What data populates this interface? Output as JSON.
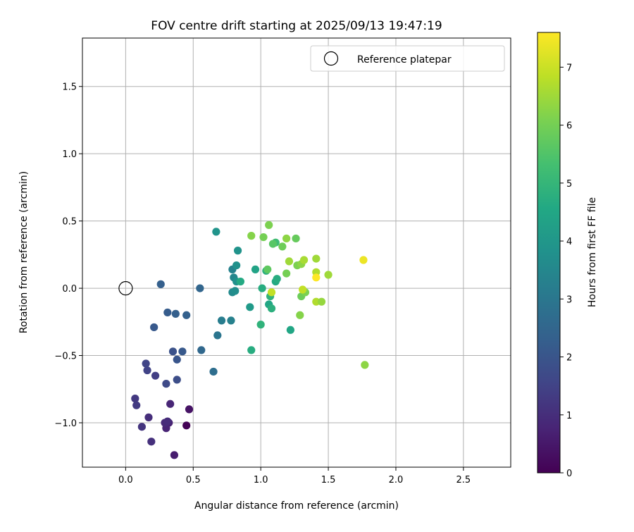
{
  "chart_data": {
    "type": "scatter",
    "title": "FOV centre drift starting at 2025/09/13 19:47:19",
    "xlabel": "Angular distance from reference (arcmin)",
    "ylabel": "Rotation from reference (arcmin)",
    "xlim": [
      -0.32,
      2.85
    ],
    "ylim": [
      -1.33,
      1.86
    ],
    "xticks": [
      0.0,
      0.5,
      1.0,
      1.5,
      2.0,
      2.5
    ],
    "xtick_labels": [
      "0.0",
      "0.5",
      "1.0",
      "1.5",
      "2.0",
      "2.5"
    ],
    "yticks": [
      -1.0,
      -0.5,
      0.0,
      0.5,
      1.0,
      1.5
    ],
    "ytick_labels": [
      "−1.0",
      "−0.5",
      "0.0",
      "0.5",
      "1.0",
      "1.5"
    ],
    "grid": true,
    "legend": {
      "position": "top-right",
      "label": "Reference platepar"
    },
    "reference_point": {
      "x": 0.0,
      "y": 0.0
    },
    "colorbar": {
      "label": "Hours from first FF file",
      "colormap": "viridis",
      "range": [
        0,
        7.6
      ],
      "ticks": [
        0,
        1,
        2,
        3,
        4,
        5,
        6,
        7
      ],
      "tick_labels": [
        "0",
        "1",
        "2",
        "3",
        "4",
        "5",
        "6",
        "7"
      ]
    },
    "points": [
      {
        "x": 0.45,
        "y": -1.02,
        "hours": 0.05
      },
      {
        "x": 0.47,
        "y": -0.9,
        "hours": 0.4
      },
      {
        "x": 0.36,
        "y": -1.24,
        "hours": 0.6
      },
      {
        "x": 0.32,
        "y": -1.0,
        "hours": 0.7
      },
      {
        "x": 0.3,
        "y": -1.04,
        "hours": 0.75
      },
      {
        "x": 0.33,
        "y": -0.86,
        "hours": 0.8
      },
      {
        "x": 0.29,
        "y": -1.0,
        "hours": 0.9
      },
      {
        "x": 0.31,
        "y": -0.99,
        "hours": 0.95
      },
      {
        "x": 0.17,
        "y": -0.96,
        "hours": 1.0
      },
      {
        "x": 0.19,
        "y": -1.14,
        "hours": 1.05
      },
      {
        "x": 0.12,
        "y": -1.03,
        "hours": 1.15
      },
      {
        "x": 0.07,
        "y": -0.82,
        "hours": 1.25
      },
      {
        "x": 0.08,
        "y": -0.87,
        "hours": 1.3
      },
      {
        "x": 0.22,
        "y": -0.65,
        "hours": 1.4
      },
      {
        "x": 0.16,
        "y": -0.61,
        "hours": 1.5
      },
      {
        "x": 0.15,
        "y": -0.56,
        "hours": 1.55
      },
      {
        "x": 0.3,
        "y": -0.71,
        "hours": 1.7
      },
      {
        "x": 0.38,
        "y": -0.68,
        "hours": 1.8
      },
      {
        "x": 0.35,
        "y": -0.47,
        "hours": 1.9
      },
      {
        "x": 0.38,
        "y": -0.53,
        "hours": 2.0
      },
      {
        "x": 0.42,
        "y": -0.47,
        "hours": 2.1
      },
      {
        "x": 0.21,
        "y": -0.29,
        "hours": 2.1
      },
      {
        "x": 0.31,
        "y": -0.18,
        "hours": 2.2
      },
      {
        "x": 0.37,
        "y": -0.19,
        "hours": 2.3
      },
      {
        "x": 0.45,
        "y": -0.2,
        "hours": 2.35
      },
      {
        "x": 0.26,
        "y": 0.03,
        "hours": 2.3
      },
      {
        "x": 0.55,
        "y": 0.0,
        "hours": 2.5
      },
      {
        "x": 0.56,
        "y": -0.46,
        "hours": 2.55
      },
      {
        "x": 0.65,
        "y": -0.62,
        "hours": 2.75
      },
      {
        "x": 0.68,
        "y": -0.35,
        "hours": 2.95
      },
      {
        "x": 0.71,
        "y": -0.24,
        "hours": 3.2
      },
      {
        "x": 0.78,
        "y": -0.24,
        "hours": 3.3
      },
      {
        "x": 0.79,
        "y": 0.14,
        "hours": 3.35
      },
      {
        "x": 0.8,
        "y": 0.08,
        "hours": 3.5
      },
      {
        "x": 0.79,
        "y": -0.03,
        "hours": 3.6
      },
      {
        "x": 0.81,
        "y": -0.02,
        "hours": 3.7
      },
      {
        "x": 0.82,
        "y": 0.05,
        "hours": 3.8
      },
      {
        "x": 0.82,
        "y": 0.17,
        "hours": 3.8
      },
      {
        "x": 0.83,
        "y": 0.28,
        "hours": 3.85
      },
      {
        "x": 0.67,
        "y": 0.42,
        "hours": 3.9
      },
      {
        "x": 0.85,
        "y": 0.05,
        "hours": 4.6
      },
      {
        "x": 0.92,
        "y": -0.14,
        "hours": 4.1
      },
      {
        "x": 0.93,
        "y": -0.46,
        "hours": 4.7
      },
      {
        "x": 0.96,
        "y": 0.14,
        "hours": 4.4
      },
      {
        "x": 1.0,
        "y": -0.27,
        "hours": 4.9
      },
      {
        "x": 1.01,
        "y": 0.0,
        "hours": 4.7
      },
      {
        "x": 1.04,
        "y": 0.13,
        "hours": 4.8
      },
      {
        "x": 1.06,
        "y": -0.12,
        "hours": 4.5
      },
      {
        "x": 1.08,
        "y": -0.15,
        "hours": 4.8
      },
      {
        "x": 1.07,
        "y": -0.06,
        "hours": 4.9
      },
      {
        "x": 1.11,
        "y": 0.05,
        "hours": 4.6
      },
      {
        "x": 1.12,
        "y": 0.07,
        "hours": 4.7
      },
      {
        "x": 1.11,
        "y": 0.34,
        "hours": 5.2
      },
      {
        "x": 1.09,
        "y": 0.33,
        "hours": 5.6
      },
      {
        "x": 1.05,
        "y": 0.14,
        "hours": 5.7
      },
      {
        "x": 1.06,
        "y": 0.47,
        "hours": 6.1
      },
      {
        "x": 0.93,
        "y": 0.39,
        "hours": 6.2
      },
      {
        "x": 1.02,
        "y": 0.38,
        "hours": 6.0
      },
      {
        "x": 1.16,
        "y": 0.31,
        "hours": 5.9
      },
      {
        "x": 1.19,
        "y": 0.37,
        "hours": 6.3
      },
      {
        "x": 1.19,
        "y": 0.11,
        "hours": 6.0
      },
      {
        "x": 1.21,
        "y": 0.2,
        "hours": 6.5
      },
      {
        "x": 1.22,
        "y": -0.31,
        "hours": 4.5
      },
      {
        "x": 1.26,
        "y": 0.37,
        "hours": 5.8
      },
      {
        "x": 1.27,
        "y": 0.17,
        "hours": 6.1
      },
      {
        "x": 1.3,
        "y": 0.18,
        "hours": 6.3
      },
      {
        "x": 1.32,
        "y": 0.21,
        "hours": 6.6
      },
      {
        "x": 1.29,
        "y": -0.2,
        "hours": 6.2
      },
      {
        "x": 1.3,
        "y": -0.06,
        "hours": 5.9
      },
      {
        "x": 1.33,
        "y": -0.03,
        "hours": 6.1
      },
      {
        "x": 1.31,
        "y": -0.01,
        "hours": 6.9
      },
      {
        "x": 1.41,
        "y": 0.12,
        "hours": 6.7
      },
      {
        "x": 1.41,
        "y": 0.22,
        "hours": 6.5
      },
      {
        "x": 1.41,
        "y": 0.08,
        "hours": 7.6
      },
      {
        "x": 1.41,
        "y": -0.1,
        "hours": 6.7
      },
      {
        "x": 1.45,
        "y": -0.1,
        "hours": 6.4
      },
      {
        "x": 1.5,
        "y": 0.1,
        "hours": 6.5
      },
      {
        "x": 1.76,
        "y": 0.21,
        "hours": 7.4
      },
      {
        "x": 1.77,
        "y": -0.57,
        "hours": 6.3
      },
      {
        "x": 1.08,
        "y": -0.03,
        "hours": 6.9
      }
    ]
  }
}
